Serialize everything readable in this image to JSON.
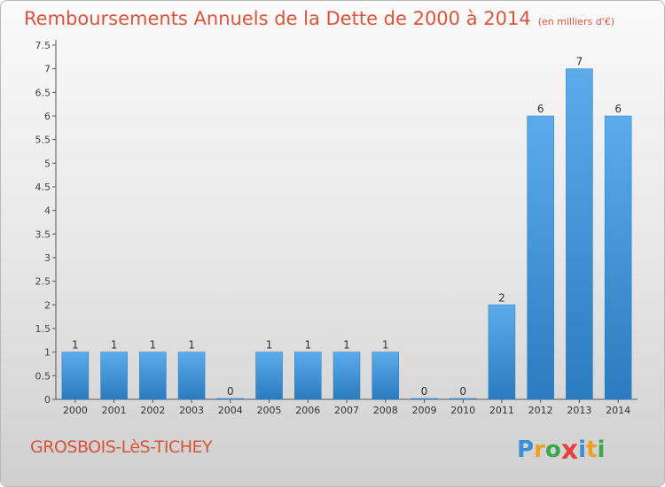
{
  "chart_data": {
    "type": "bar",
    "title": "Remboursements Annuels de la Dette de 2000 à 2014",
    "unit_note": "(en milliers d'€)",
    "categories": [
      "2000",
      "2001",
      "2002",
      "2003",
      "2004",
      "2005",
      "2006",
      "2007",
      "2008",
      "2009",
      "2010",
      "2011",
      "2012",
      "2013",
      "2014"
    ],
    "values": [
      1,
      1,
      1,
      1,
      0,
      1,
      1,
      1,
      1,
      0,
      0,
      2,
      6,
      7,
      6
    ],
    "value_labels": [
      "1",
      "1",
      "1",
      "1",
      "0",
      "1",
      "1",
      "1",
      "1",
      "0",
      "0",
      "2",
      "6",
      "7",
      "6"
    ],
    "yticks": [
      "0",
      "0.5",
      "1",
      "1.5",
      "2",
      "2.5",
      "3",
      "3.5",
      "4",
      "4.5",
      "5",
      "5.5",
      "6",
      "6.5",
      "7",
      "7.5"
    ],
    "ylim": [
      0,
      7.5
    ],
    "xlabel": "",
    "ylabel": "",
    "grid": false,
    "bar_color": "#4a9ee0"
  },
  "footer": {
    "place": "GROSBOIS-LèS-TICHEY",
    "logo_letters": [
      {
        "ch": "P",
        "color": "#3a8fd8"
      },
      {
        "ch": "r",
        "color": "#f0a020"
      },
      {
        "ch": "o",
        "color": "#3aa84a"
      },
      {
        "ch": "x",
        "color": "#e84040"
      },
      {
        "ch": "i",
        "color": "#3a8fd8"
      },
      {
        "ch": "t",
        "color": "#f0a020"
      },
      {
        "ch": "i",
        "color": "#3aa84a"
      }
    ]
  }
}
